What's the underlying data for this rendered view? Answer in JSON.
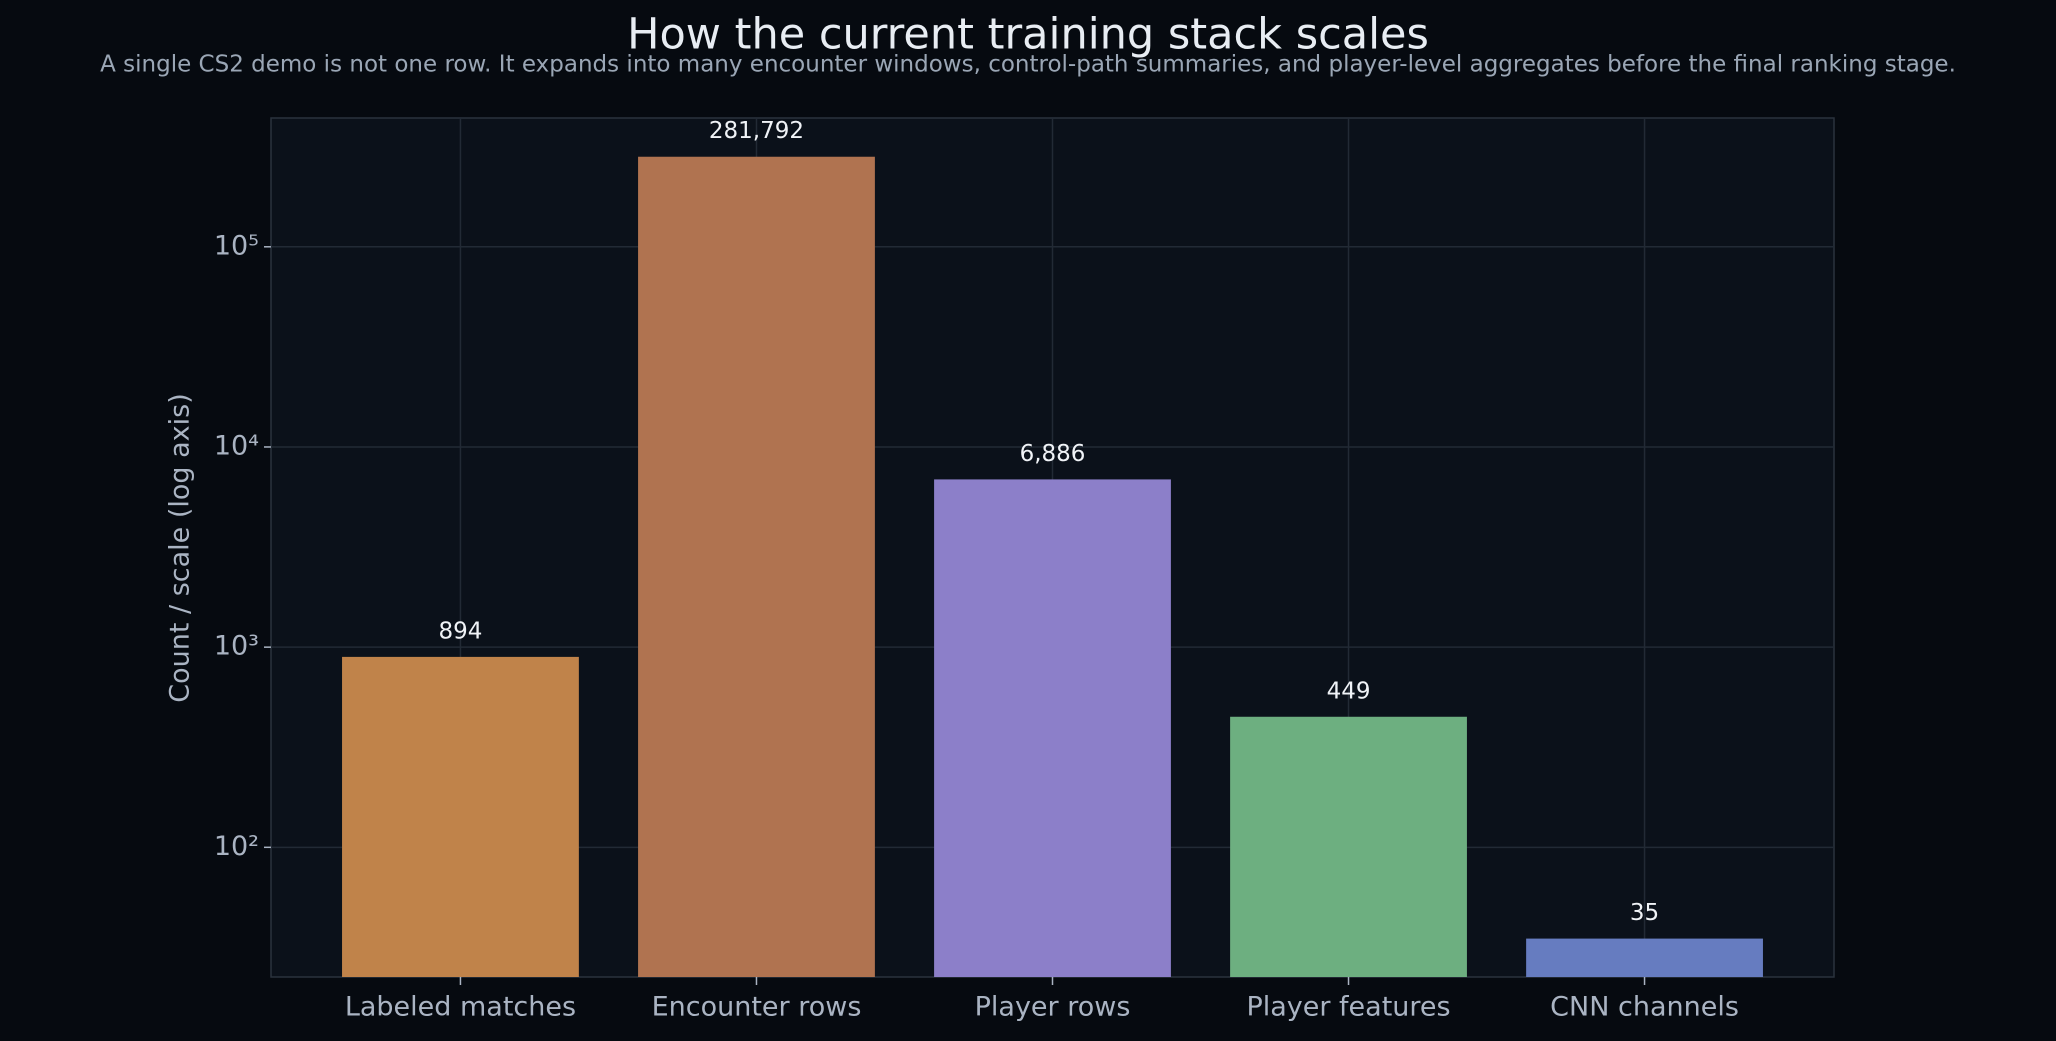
{
  "chart_data": {
    "type": "bar",
    "title": "How the current training stack scales",
    "subtitle": "A single CS2 demo is not one row. It expands into many encounter windows, control-path summaries, and player-level aggregates before the final ranking stage.",
    "y_label": "Count / scale (log axis)",
    "categories": [
      "Labeled matches",
      "Encounter rows",
      "Player rows",
      "Player features",
      "CNN channels"
    ],
    "values": [
      894,
      281792,
      6886,
      449,
      35
    ],
    "value_labels": [
      "894",
      "281,792",
      "6,886",
      "449",
      "35"
    ],
    "colors": [
      "#c0834a",
      "#b07350",
      "#8c7fc9",
      "#6daf80",
      "#667cc0"
    ],
    "log_scale": true,
    "ylim": [
      22.5,
      440000
    ],
    "yticks": [
      {
        "value": 100,
        "label": "10²"
      },
      {
        "value": 1000,
        "label": "10³"
      },
      {
        "value": 10000,
        "label": "10⁴"
      },
      {
        "value": 100000,
        "label": "10⁵"
      }
    ],
    "grid": true
  }
}
